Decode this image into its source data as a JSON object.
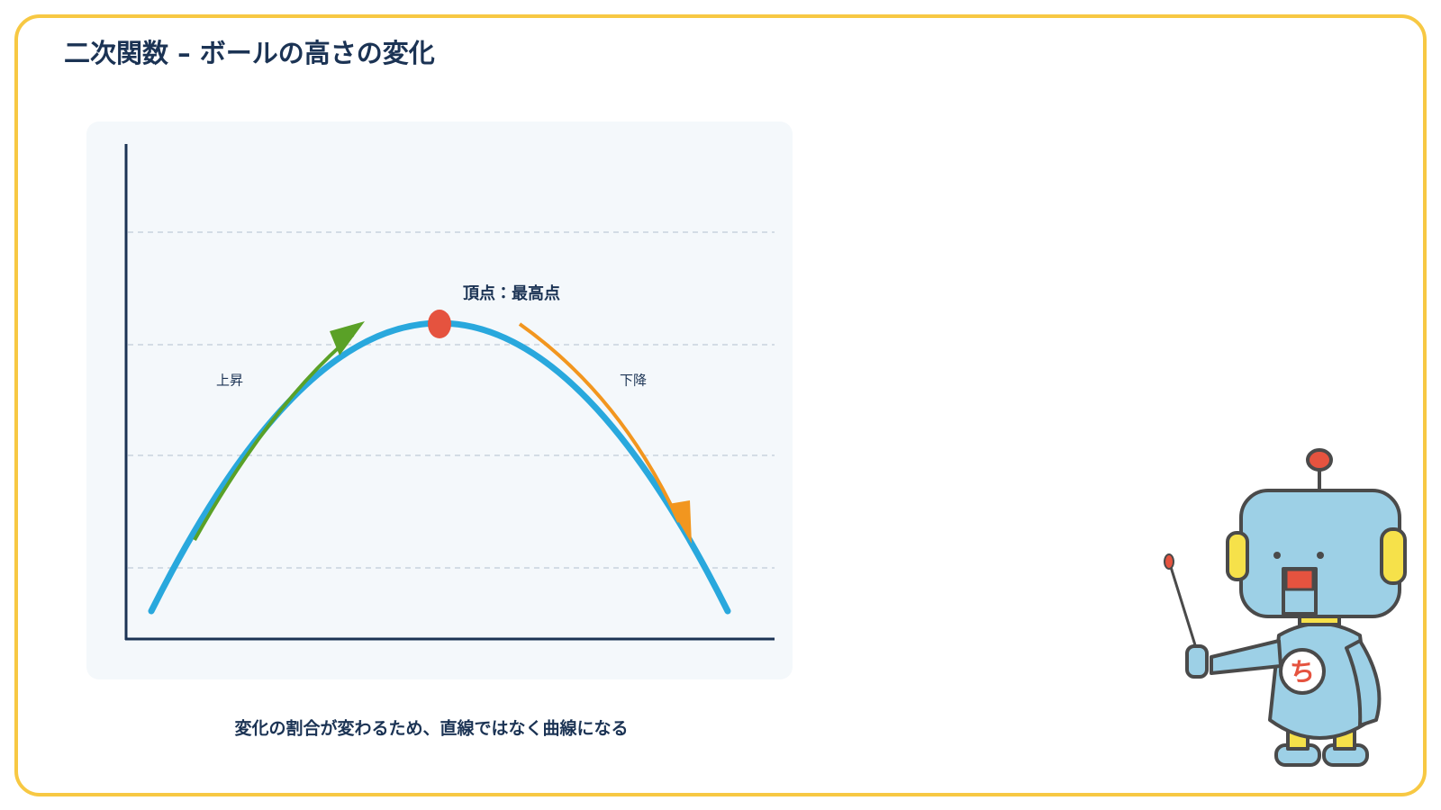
{
  "header": {
    "title": "二次関数 – ボールの高さの変化"
  },
  "diagram": {
    "vertex_label": "頂点：最高点",
    "rise_label": "上昇",
    "fall_label": "下降"
  },
  "caption": "変化の割合が変わるため、直線ではなく曲線になる"
}
